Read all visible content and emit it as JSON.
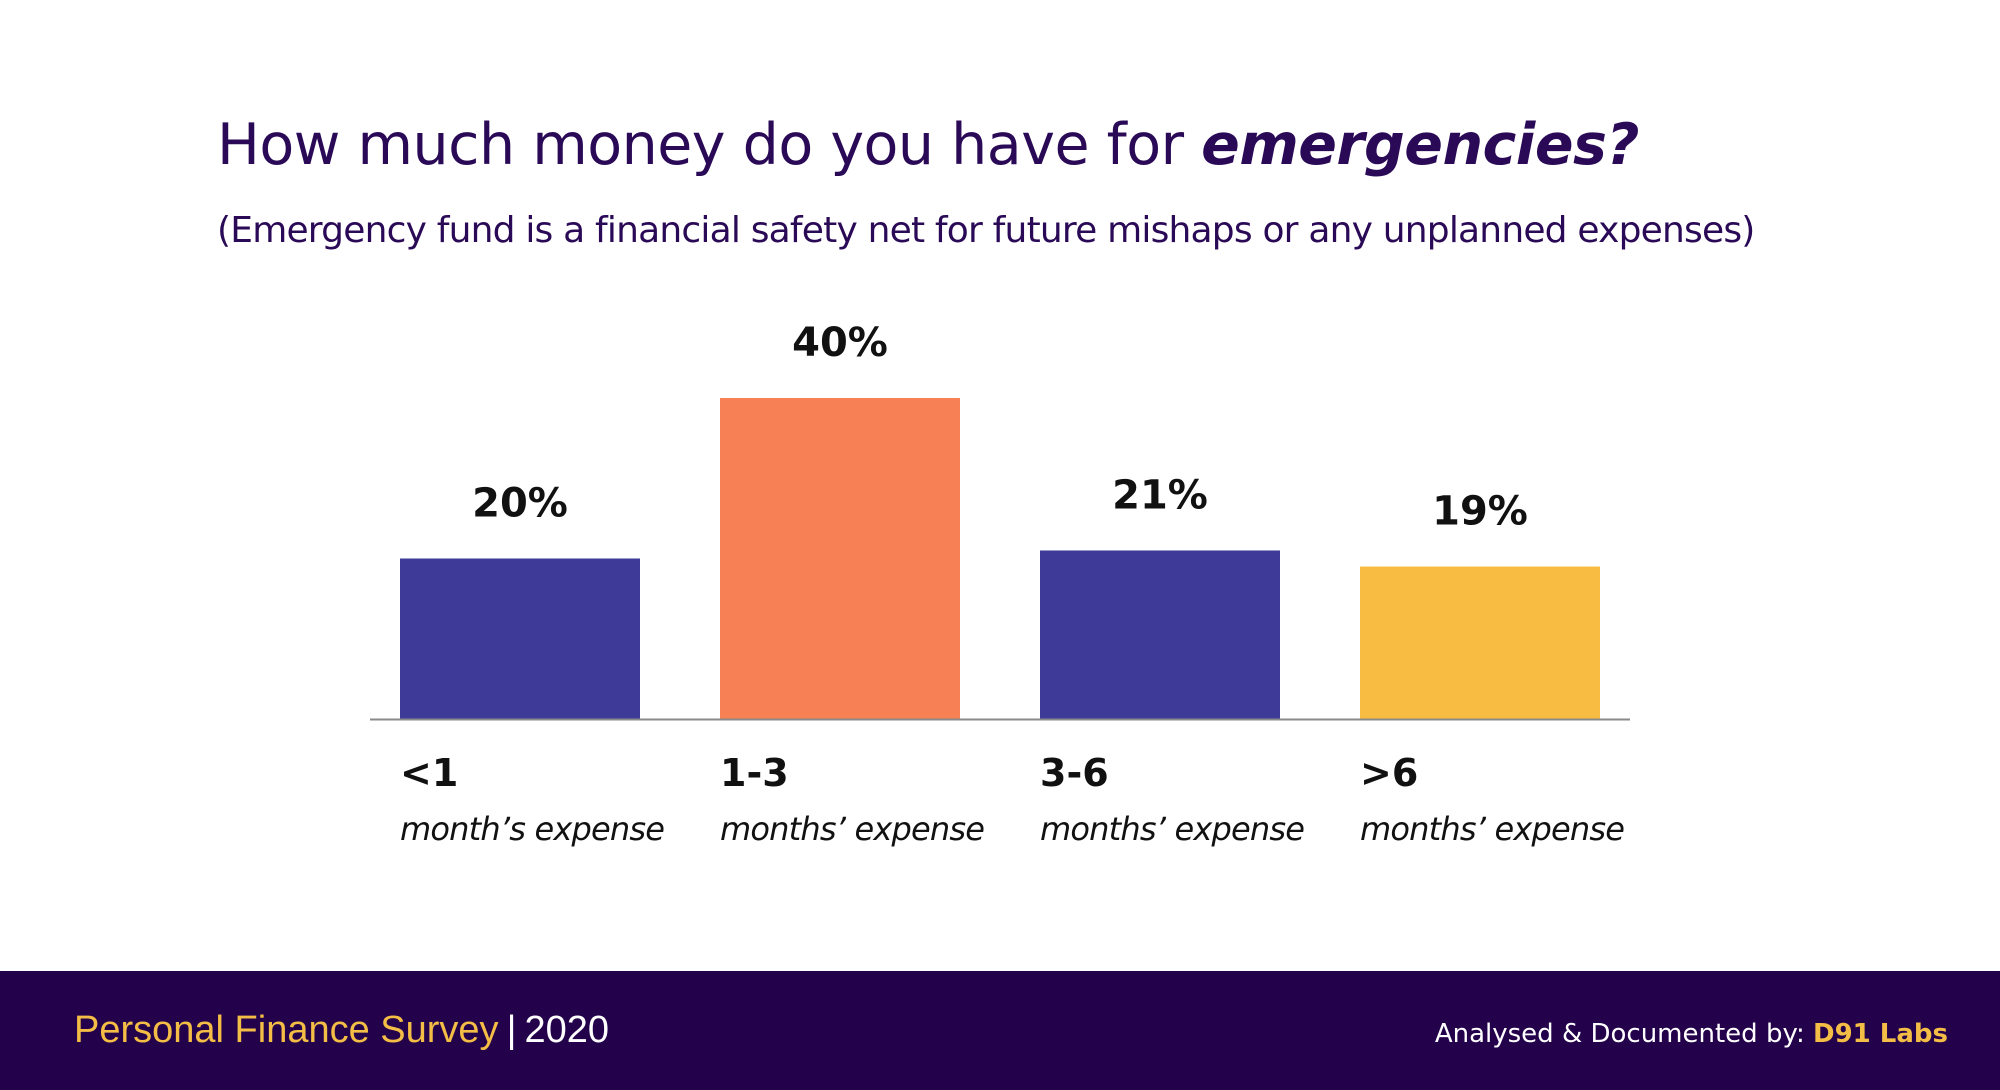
{
  "header": {
    "title_prefix": "How much money do you have for ",
    "title_emphasis": "emergencies?",
    "subtitle": "(Emergency fund is a financial safety net for future mishaps or any unplanned expenses)"
  },
  "chart_data": {
    "type": "bar",
    "categories": [
      "<1",
      "1-3",
      "3-6",
      ">6"
    ],
    "category_sublabels": [
      "month’s expense",
      "months’ expense",
      "months’ expense",
      "months’ expense"
    ],
    "values": [
      20,
      40,
      21,
      19
    ],
    "value_labels": [
      "20%",
      "40%",
      "21%",
      "19%"
    ],
    "unit": "%",
    "colors": [
      "#3d3a98",
      "#f78154",
      "#3d3a98",
      "#f8bc42"
    ],
    "axis_color": "#8a8a8a",
    "grid": false,
    "legend": "none",
    "ylim": [
      0,
      40
    ]
  },
  "footer": {
    "survey_label": "Personal Finance Survey",
    "separator": "|",
    "year": "2020",
    "credit_label": "Analysed & Documented by:",
    "credit_brand": "D91 Labs"
  },
  "colors": {
    "title_text": "#2a0a57",
    "footer_background": "#23024b",
    "footer_accent": "#f4bd45"
  }
}
